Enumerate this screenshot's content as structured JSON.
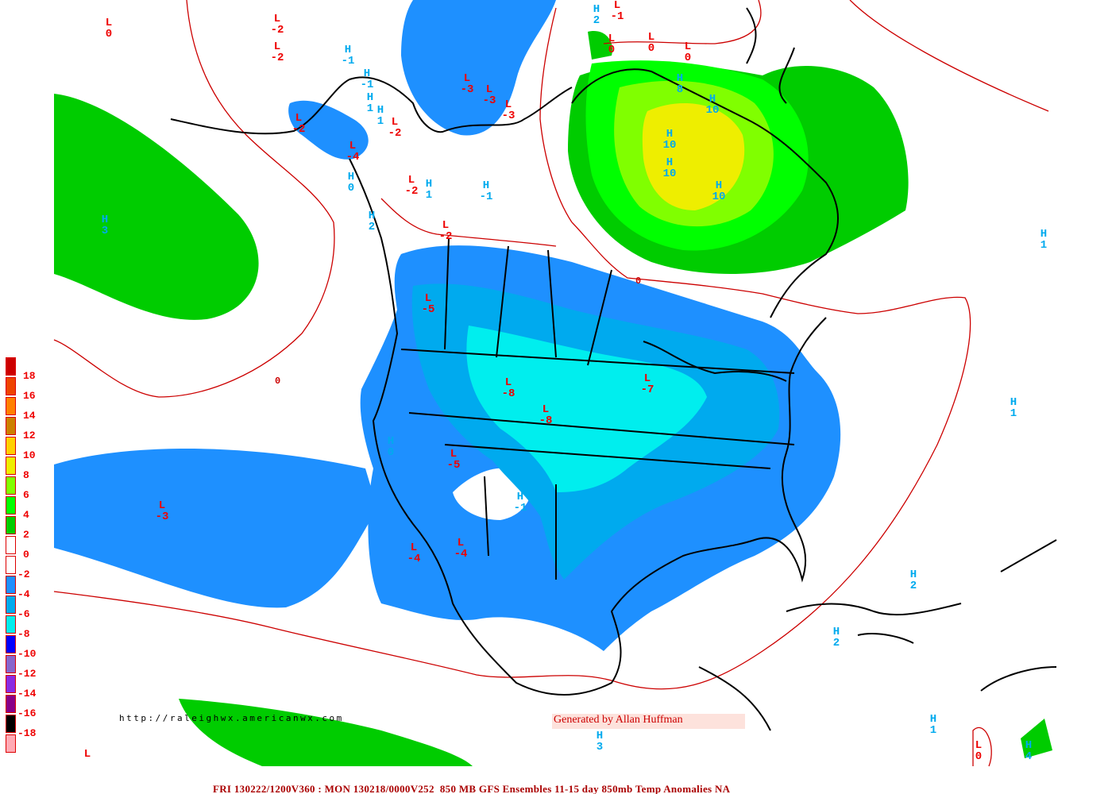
{
  "footer": "FRI 130222/1200V360 : MON 130218/0000V252  850 MB GFS Ensembles 11-15 day 850mb Temp Anomalies NA",
  "watermark_url": "http://raleighwx.americanwx.com",
  "credit": "Generated by Allan Huffman",
  "colors": {
    "contour": "#cc0000",
    "coast": "#000000",
    "low_label": "#ee0000",
    "high_label": "#00aaee"
  },
  "legend": [
    {
      "color": "#cc0000",
      "label": "18"
    },
    {
      "color": "#ee4400",
      "label": "16"
    },
    {
      "color": "#ff8000",
      "label": "14"
    },
    {
      "color": "#cc8000",
      "label": "12"
    },
    {
      "color": "#ffd000",
      "label": "10"
    },
    {
      "color": "#eeee00",
      "label": "8"
    },
    {
      "color": "#80ff00",
      "label": "6"
    },
    {
      "color": "#00ff00",
      "label": "4"
    },
    {
      "color": "#00cc00",
      "label": "2"
    },
    {
      "color": "#ffffff",
      "label": "0"
    },
    {
      "color": "#ffffff",
      "label": "-2"
    },
    {
      "color": "#1e90ff",
      "label": "-4"
    },
    {
      "color": "#00aaee",
      "label": "-6"
    },
    {
      "color": "#00eeee",
      "label": "-8"
    },
    {
      "color": "#0000ff",
      "label": "-10"
    },
    {
      "color": "#8866cc",
      "label": "-12"
    },
    {
      "color": "#8a2be2",
      "label": "-14"
    },
    {
      "color": "#880088",
      "label": "-16"
    },
    {
      "color": "#000000",
      "label": "-18"
    },
    {
      "color": "#ffaab4",
      "label": ""
    }
  ],
  "contour_labels": [
    "0",
    "0"
  ],
  "centers": [
    {
      "type": "L",
      "value": "0"
    },
    {
      "type": "L",
      "value": "-2"
    },
    {
      "type": "L",
      "value": "-2"
    },
    {
      "type": "H",
      "value": "-1"
    },
    {
      "type": "H",
      "value": "-1"
    },
    {
      "type": "L",
      "value": "-3"
    },
    {
      "type": "L",
      "value": "-3"
    },
    {
      "type": "L",
      "value": "-3"
    },
    {
      "type": "L",
      "value": "-2"
    },
    {
      "type": "H",
      "value": "1"
    },
    {
      "type": "H",
      "value": "1"
    },
    {
      "type": "L",
      "value": "-2"
    },
    {
      "type": "L",
      "value": "-4"
    },
    {
      "type": "H",
      "value": "0"
    },
    {
      "type": "L",
      "value": "-2"
    },
    {
      "type": "H",
      "value": "1"
    },
    {
      "type": "H",
      "value": "-1"
    },
    {
      "type": "H",
      "value": "3"
    },
    {
      "type": "H",
      "value": "2"
    },
    {
      "type": "L",
      "value": "-2"
    },
    {
      "type": "H",
      "value": "1"
    },
    {
      "type": "L",
      "value": "-5"
    },
    {
      "type": "L",
      "value": "-8"
    },
    {
      "type": "L",
      "value": "-8"
    },
    {
      "type": "L",
      "value": "-7"
    },
    {
      "type": "H",
      "value": "1"
    },
    {
      "type": "H",
      "value": "0"
    },
    {
      "type": "L",
      "value": "-5"
    },
    {
      "type": "H",
      "value": "-1"
    },
    {
      "type": "L",
      "value": "-3"
    },
    {
      "type": "L",
      "value": "-4"
    },
    {
      "type": "L",
      "value": "-4"
    },
    {
      "type": "H",
      "value": "2"
    },
    {
      "type": "H",
      "value": "2"
    },
    {
      "type": "H",
      "value": "3"
    },
    {
      "type": "H",
      "value": "1"
    },
    {
      "type": "L",
      "value": "0"
    },
    {
      "type": "H",
      "value": "4"
    },
    {
      "type": "L",
      "value": ""
    },
    {
      "type": "H",
      "value": "2"
    },
    {
      "type": "L",
      "value": "-1"
    },
    {
      "type": "L",
      "value": "0"
    },
    {
      "type": "L",
      "value": "0"
    },
    {
      "type": "L",
      "value": "0"
    },
    {
      "type": "H",
      "value": "8"
    },
    {
      "type": "H",
      "value": "10"
    },
    {
      "type": "H",
      "value": "10"
    },
    {
      "type": "H",
      "value": "10"
    },
    {
      "type": "H",
      "value": "10"
    }
  ]
}
